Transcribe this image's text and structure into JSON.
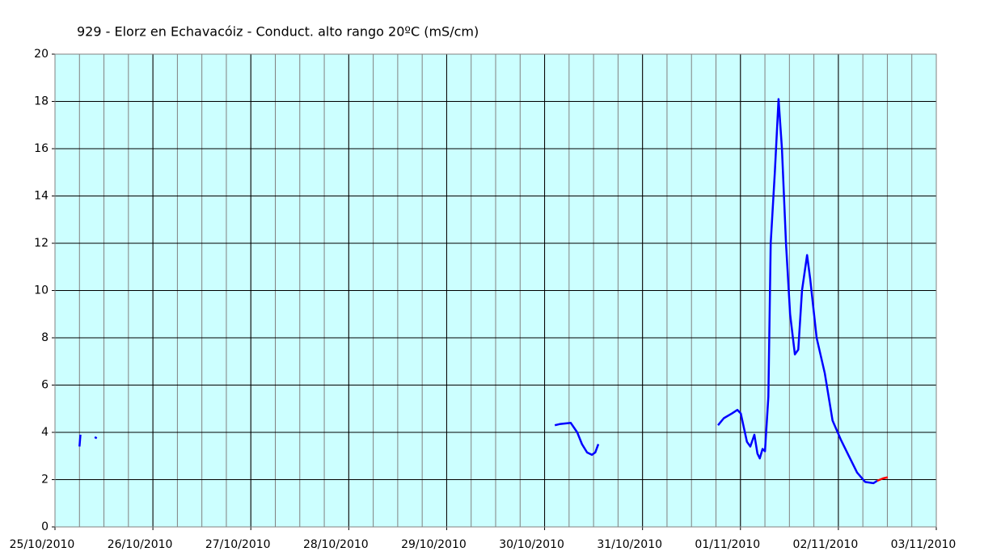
{
  "chart_data": {
    "type": "line",
    "title": "929 - Elorz en Echavacóiz - Conduct. alto rango 20ºC (mS/cm)",
    "xlim": [
      "2010-10-25",
      "2010-11-03"
    ],
    "xticks": [
      {
        "value": "2010-10-25",
        "label": "25/10/2010"
      },
      {
        "value": "2010-10-26",
        "label": "26/10/2010"
      },
      {
        "value": "2010-10-27",
        "label": "27/10/2010"
      },
      {
        "value": "2010-10-28",
        "label": "28/10/2010"
      },
      {
        "value": "2010-10-29",
        "label": "29/10/2010"
      },
      {
        "value": "2010-10-30",
        "label": "30/10/2010"
      },
      {
        "value": "2010-10-31",
        "label": "31/10/2010"
      },
      {
        "value": "2010-11-01",
        "label": "01/11/2010"
      },
      {
        "value": "2010-11-02",
        "label": "02/11/2010"
      },
      {
        "value": "2010-11-03",
        "label": "03/11/2010"
      }
    ],
    "ylim": [
      0,
      20
    ],
    "yticks": [
      0,
      2,
      4,
      6,
      8,
      10,
      12,
      14,
      16,
      18,
      20
    ],
    "grid": true,
    "background": "#ccffff",
    "series": [
      {
        "color": "#0000ff",
        "x": [
          "2010-10-25T06:00",
          "2010-10-25T06:15"
        ],
        "values": [
          3.4,
          3.9
        ]
      },
      {
        "color": "#0000ff",
        "x": [
          "2010-10-25T09:45",
          "2010-10-25T10:15"
        ],
        "values": [
          3.8,
          3.75
        ]
      },
      {
        "color": "#0000ff",
        "x": [
          "2010-10-30T02:30",
          "2010-10-30T03:40",
          "2010-10-30T06:25",
          "2010-10-30T08:00",
          "2010-10-30T09:10",
          "2010-10-30T10:25",
          "2010-10-30T11:35",
          "2010-10-30T12:25",
          "2010-10-30T13:10"
        ],
        "values": [
          4.3,
          4.35,
          4.4,
          4.0,
          3.5,
          3.15,
          3.05,
          3.15,
          3.5
        ]
      },
      {
        "color": "#0000ff",
        "x": [
          "2010-10-31T18:30",
          "2010-10-31T19:55",
          "2010-10-31T21:55",
          "2010-10-31T23:15",
          "2010-11-01T00:05",
          "2010-11-01T00:50",
          "2010-11-01T01:35",
          "2010-11-01T02:25",
          "2010-11-01T03:25",
          "2010-11-01T04:10",
          "2010-11-01T04:45",
          "2010-11-01T05:25",
          "2010-11-01T06:00",
          "2010-11-01T06:50",
          "2010-11-01T07:25",
          "2010-11-01T08:25",
          "2010-11-01T09:20",
          "2010-11-01T10:10",
          "2010-11-01T11:10",
          "2010-11-01T12:10",
          "2010-11-01T13:20",
          "2010-11-01T14:10",
          "2010-11-01T15:05",
          "2010-11-01T16:20",
          "2010-11-01T17:05",
          "2010-11-01T18:40",
          "2010-11-01T20:40",
          "2010-11-01T22:35",
          "2010-11-02T00:35",
          "2010-11-02T02:35",
          "2010-11-02T04:35",
          "2010-11-02T06:35",
          "2010-11-02T08:35",
          "2010-11-02T09:30"
        ],
        "values": [
          4.3,
          4.6,
          4.8,
          4.95,
          4.8,
          4.2,
          3.6,
          3.4,
          3.9,
          3.1,
          2.9,
          3.3,
          3.2,
          5.5,
          12.0,
          15.0,
          18.1,
          16.0,
          12.0,
          9.0,
          7.3,
          7.5,
          10.0,
          11.5,
          10.5,
          8.0,
          6.5,
          4.5,
          3.7,
          3.0,
          2.3,
          1.9,
          1.85,
          1.95
        ]
      },
      {
        "color": "#ff0000",
        "x": [
          "2010-11-02T09:30",
          "2010-11-02T10:55",
          "2010-11-02T12:05"
        ],
        "values": [
          1.95,
          2.05,
          2.1
        ]
      }
    ]
  }
}
